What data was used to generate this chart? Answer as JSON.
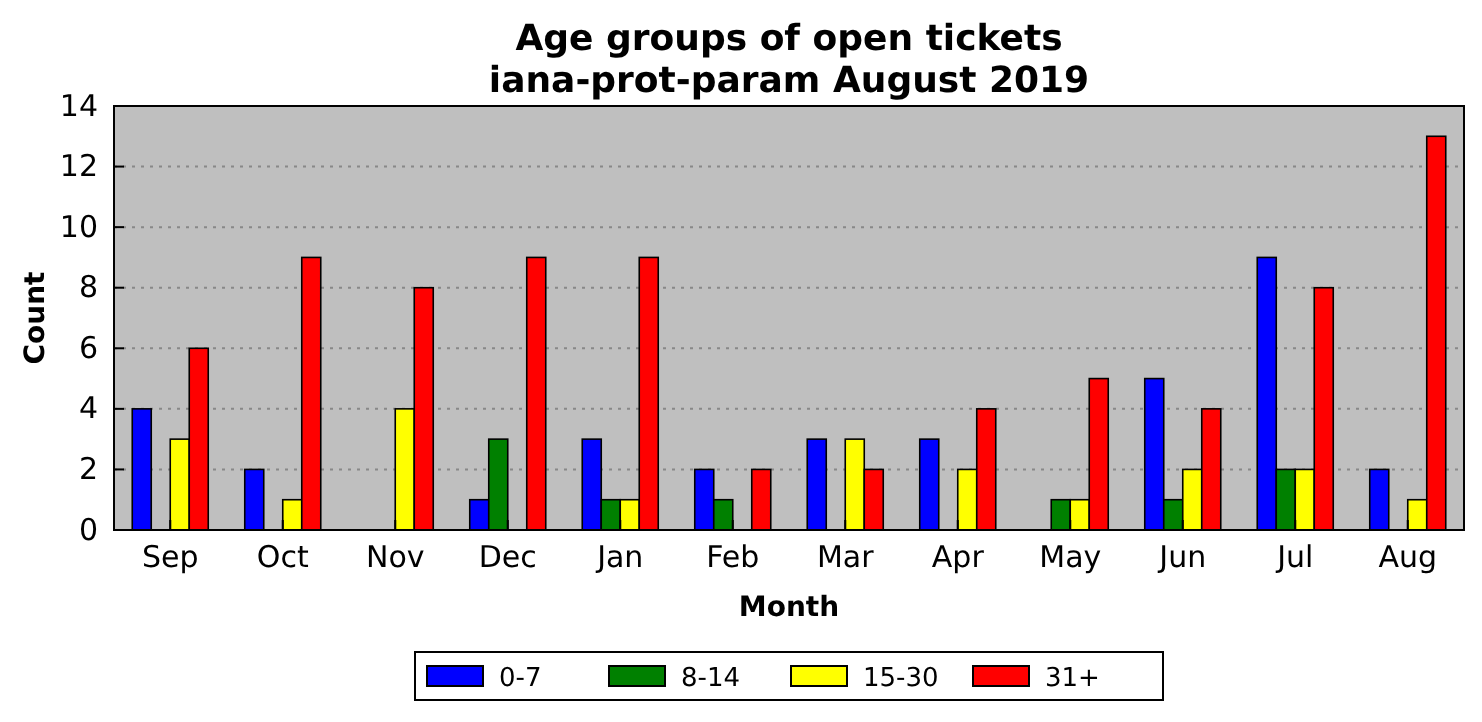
{
  "chart_data": {
    "type": "bar",
    "title": "Age groups of open tickets\niana-prot-param August 2019",
    "xlabel": "Month",
    "ylabel": "Count",
    "categories": [
      "Sep",
      "Oct",
      "Nov",
      "Dec",
      "Jan",
      "Feb",
      "Mar",
      "Apr",
      "May",
      "Jun",
      "Jul",
      "Aug"
    ],
    "series": [
      {
        "name": "0-7",
        "color": "#0000ff",
        "values": [
          4,
          2,
          0,
          1,
          3,
          2,
          3,
          3,
          0,
          5,
          9,
          2
        ]
      },
      {
        "name": "8-14",
        "color": "#008000",
        "values": [
          0,
          0,
          0,
          3,
          1,
          1,
          0,
          0,
          1,
          1,
          2,
          0
        ]
      },
      {
        "name": "15-30",
        "color": "#ffff00",
        "values": [
          3,
          1,
          4,
          0,
          1,
          0,
          3,
          2,
          1,
          2,
          2,
          1
        ]
      },
      {
        "name": "31+",
        "color": "#ff0000",
        "values": [
          6,
          9,
          8,
          9,
          9,
          2,
          2,
          4,
          5,
          4,
          8,
          13
        ]
      }
    ],
    "ylim": [
      0,
      14
    ],
    "yticks": [
      0,
      2,
      4,
      6,
      8,
      10,
      12,
      14
    ],
    "grid": "y",
    "legend": "bottom"
  }
}
